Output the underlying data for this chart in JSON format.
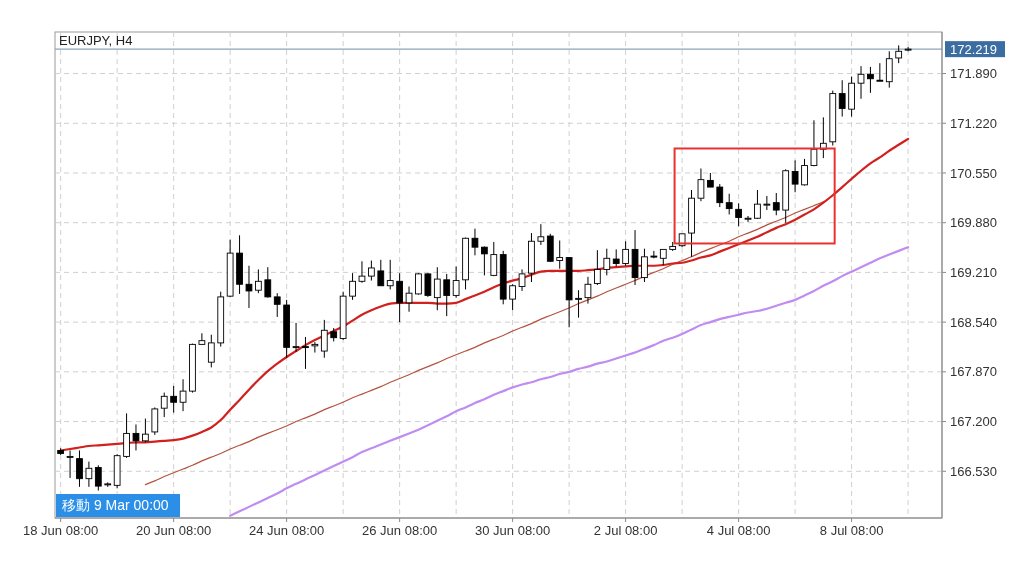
{
  "chart_data": {
    "type": "candlestick",
    "title": "EURJPY, H4",
    "categories": [
      "18 Jun 08:00",
      null,
      null,
      null,
      null,
      null,
      null,
      null,
      null,
      null,
      null,
      null,
      "20 Jun 08:00",
      null,
      null,
      null,
      null,
      null,
      null,
      null,
      null,
      null,
      null,
      null,
      "24 Jun 08:00",
      null,
      null,
      null,
      null,
      null,
      null,
      null,
      null,
      null,
      null,
      null,
      "26 Jun 08:00",
      null,
      null,
      null,
      null,
      null,
      null,
      null,
      null,
      null,
      null,
      null,
      "30 Jun 08:00",
      null,
      null,
      null,
      null,
      null,
      null,
      null,
      null,
      null,
      null,
      null,
      "2 Jul 08:00",
      null,
      null,
      null,
      null,
      null,
      null,
      null,
      null,
      null,
      null,
      null,
      "4 Jul 08:00",
      null,
      null,
      null,
      null,
      null,
      null,
      null,
      null,
      null,
      null,
      null,
      "8 Jul 08:00",
      null,
      null,
      null,
      null,
      null,
      null
    ],
    "ohlc": [
      [
        166.81,
        166.84,
        166.75,
        166.77
      ],
      [
        166.72,
        166.81,
        166.44,
        166.73
      ],
      [
        166.7,
        166.81,
        166.32,
        166.43
      ],
      [
        166.43,
        166.66,
        166.32,
        166.57
      ],
      [
        166.58,
        166.61,
        166.27,
        166.33
      ],
      [
        166.35,
        166.38,
        166.32,
        166.36
      ],
      [
        166.34,
        166.76,
        166.3,
        166.74
      ],
      [
        166.73,
        167.31,
        166.71,
        167.04
      ],
      [
        167.04,
        167.16,
        166.81,
        166.94
      ],
      [
        166.94,
        167.24,
        166.92,
        167.03
      ],
      [
        167.06,
        167.39,
        167.02,
        167.37
      ],
      [
        167.38,
        167.59,
        167.26,
        167.54
      ],
      [
        167.54,
        167.68,
        167.32,
        167.46
      ],
      [
        167.46,
        167.77,
        167.34,
        167.61
      ],
      [
        167.61,
        168.25,
        167.59,
        168.24
      ],
      [
        168.24,
        168.39,
        168.24,
        168.29
      ],
      [
        168.0,
        168.37,
        167.93,
        168.26
      ],
      [
        168.26,
        168.95,
        168.21,
        168.88
      ],
      [
        168.89,
        169.65,
        168.88,
        169.47
      ],
      [
        169.47,
        169.71,
        168.92,
        169.05
      ],
      [
        169.05,
        169.3,
        168.73,
        168.96
      ],
      [
        168.97,
        169.25,
        168.93,
        169.09
      ],
      [
        169.11,
        169.28,
        168.87,
        168.88
      ],
      [
        168.88,
        168.93,
        168.61,
        168.78
      ],
      [
        168.77,
        168.84,
        168.06,
        168.2
      ],
      [
        168.2,
        168.53,
        168.14,
        168.21
      ],
      [
        168.21,
        168.34,
        167.91,
        168.2
      ],
      [
        168.22,
        168.27,
        168.13,
        168.24
      ],
      [
        168.15,
        168.57,
        168.06,
        168.43
      ],
      [
        168.41,
        168.46,
        168.28,
        168.33
      ],
      [
        168.32,
        168.95,
        168.3,
        168.89
      ],
      [
        168.89,
        169.2,
        168.84,
        169.09
      ],
      [
        169.09,
        169.36,
        169.07,
        169.16
      ],
      [
        169.16,
        169.37,
        169.1,
        169.27
      ],
      [
        169.23,
        169.38,
        169.03,
        169.03
      ],
      [
        169.03,
        169.38,
        168.98,
        169.1
      ],
      [
        169.09,
        169.2,
        168.54,
        168.8
      ],
      [
        168.8,
        169.02,
        168.68,
        168.93
      ],
      [
        168.92,
        169.2,
        168.91,
        169.19
      ],
      [
        169.19,
        169.2,
        168.88,
        168.9
      ],
      [
        168.87,
        169.28,
        168.7,
        169.12
      ],
      [
        169.11,
        169.19,
        168.62,
        168.9
      ],
      [
        168.9,
        169.29,
        168.87,
        169.1
      ],
      [
        169.11,
        169.68,
        168.98,
        169.67
      ],
      [
        169.67,
        169.8,
        169.44,
        169.55
      ],
      [
        169.55,
        169.56,
        169.17,
        169.46
      ],
      [
        169.17,
        169.62,
        169.16,
        169.45
      ],
      [
        169.45,
        169.5,
        168.78,
        168.85
      ],
      [
        168.85,
        169.05,
        168.7,
        169.03
      ],
      [
        169.02,
        169.25,
        168.96,
        169.19
      ],
      [
        169.2,
        169.74,
        169.08,
        169.63
      ],
      [
        169.63,
        169.86,
        169.58,
        169.69
      ],
      [
        169.7,
        169.73,
        169.35,
        169.36
      ],
      [
        169.37,
        169.64,
        169.26,
        169.41
      ],
      [
        169.41,
        169.41,
        168.47,
        168.84
      ],
      [
        168.85,
        168.97,
        168.6,
        168.86
      ],
      [
        168.87,
        169.15,
        168.79,
        169.05
      ],
      [
        169.06,
        169.51,
        169.04,
        169.25
      ],
      [
        169.25,
        169.53,
        169.17,
        169.4
      ],
      [
        169.39,
        169.52,
        169.29,
        169.33
      ],
      [
        169.33,
        169.63,
        169.3,
        169.52
      ],
      [
        169.52,
        169.78,
        169.04,
        169.14
      ],
      [
        169.14,
        169.53,
        169.08,
        169.42
      ],
      [
        169.43,
        169.5,
        169.4,
        169.42
      ],
      [
        169.4,
        169.52,
        169.31,
        169.52
      ],
      [
        169.52,
        169.62,
        169.5,
        169.56
      ],
      [
        169.57,
        169.73,
        169.55,
        169.73
      ],
      [
        169.74,
        170.32,
        169.42,
        170.21
      ],
      [
        170.21,
        170.61,
        170.17,
        170.46
      ],
      [
        170.45,
        170.55,
        170.36,
        170.36
      ],
      [
        170.36,
        170.4,
        170.09,
        170.15
      ],
      [
        170.15,
        170.27,
        169.99,
        170.07
      ],
      [
        170.06,
        170.14,
        169.83,
        169.95
      ],
      [
        169.94,
        169.97,
        169.89,
        169.94
      ],
      [
        169.94,
        170.32,
        169.93,
        170.13
      ],
      [
        170.12,
        170.24,
        170.05,
        170.13
      ],
      [
        170.15,
        170.28,
        169.98,
        170.05
      ],
      [
        170.05,
        170.6,
        169.88,
        170.58
      ],
      [
        170.57,
        170.72,
        170.29,
        170.4
      ],
      [
        170.39,
        170.74,
        170.38,
        170.65
      ],
      [
        170.65,
        171.26,
        170.64,
        170.87
      ],
      [
        170.87,
        171.3,
        170.75,
        170.95
      ],
      [
        170.97,
        171.66,
        170.92,
        171.62
      ],
      [
        171.62,
        171.8,
        171.31,
        171.42
      ],
      [
        171.41,
        171.85,
        171.31,
        171.76
      ],
      [
        171.76,
        171.99,
        171.55,
        171.88
      ],
      [
        171.88,
        171.98,
        171.63,
        171.82
      ],
      [
        171.8,
        172.03,
        171.79,
        171.79
      ],
      [
        171.78,
        172.19,
        171.7,
        172.09
      ],
      [
        172.1,
        172.27,
        172.03,
        172.19
      ],
      [
        172.21,
        172.25,
        172.19,
        172.219
      ]
    ],
    "series": [
      {
        "type": "line",
        "color": "#b4533f",
        "values": [
          null,
          null,
          null,
          null,
          null,
          null,
          null,
          null,
          null,
          166.35,
          166.4,
          166.46,
          166.51,
          166.56,
          166.61,
          166.67,
          166.72,
          166.77,
          166.83,
          166.88,
          166.93,
          166.99,
          167.04,
          167.09,
          167.14,
          167.2,
          167.25,
          167.3,
          167.36,
          167.41,
          167.46,
          167.52,
          167.57,
          167.62,
          167.67,
          167.73,
          167.78,
          167.83,
          167.89,
          167.94,
          167.99,
          168.05,
          168.1,
          168.15,
          168.2,
          168.26,
          168.31,
          168.36,
          168.42,
          168.47,
          168.52,
          168.58,
          168.63,
          168.68,
          168.73,
          168.79,
          168.84,
          168.89,
          168.95,
          169.0,
          169.05,
          169.1,
          169.16,
          169.21,
          169.26,
          169.32,
          169.37,
          169.42,
          169.48,
          169.53,
          169.58,
          169.63,
          169.69,
          169.74,
          169.79,
          169.85,
          169.9,
          169.95,
          170.01,
          170.06,
          170.11,
          170.16,
          null,
          null,
          null,
          null,
          null,
          null,
          null,
          null,
          null
        ]
      },
      {
        "type": "line",
        "color": "#d0211f",
        "values": [
          166.81,
          166.83,
          166.85,
          166.87,
          166.88,
          166.89,
          166.9,
          166.91,
          166.92,
          166.92,
          166.93,
          166.94,
          166.95,
          166.97,
          167.01,
          167.06,
          167.12,
          167.22,
          167.36,
          167.49,
          167.63,
          167.76,
          167.88,
          167.98,
          168.07,
          168.15,
          168.23,
          168.3,
          168.36,
          168.42,
          168.48,
          168.56,
          168.64,
          168.7,
          168.75,
          168.79,
          168.8,
          168.8,
          168.8,
          168.8,
          168.79,
          168.79,
          168.8,
          168.85,
          168.9,
          168.95,
          169.01,
          169.06,
          169.1,
          169.13,
          169.18,
          169.22,
          169.23,
          169.23,
          169.23,
          169.23,
          169.24,
          169.25,
          169.27,
          169.28,
          169.29,
          169.3,
          169.3,
          169.3,
          169.31,
          169.33,
          169.34,
          169.37,
          169.41,
          169.44,
          169.49,
          169.54,
          169.59,
          169.64,
          169.69,
          169.75,
          169.81,
          169.86,
          169.92,
          169.99,
          170.06,
          170.15,
          170.25,
          170.36,
          170.47,
          170.58,
          170.68,
          170.76,
          170.85,
          170.93,
          171.01
        ]
      },
      {
        "type": "line",
        "color": "#c08cf0",
        "values": [
          null,
          null,
          null,
          null,
          null,
          null,
          null,
          null,
          null,
          null,
          null,
          null,
          null,
          null,
          null,
          null,
          null,
          null,
          165.93,
          165.99,
          166.05,
          166.11,
          166.17,
          166.23,
          166.3,
          166.36,
          166.42,
          166.48,
          166.54,
          166.6,
          166.66,
          166.72,
          166.79,
          166.84,
          166.89,
          166.94,
          166.99,
          167.04,
          167.09,
          167.15,
          167.21,
          167.27,
          167.34,
          167.39,
          167.45,
          167.5,
          167.56,
          167.61,
          167.66,
          167.7,
          167.73,
          167.77,
          167.8,
          167.84,
          167.87,
          167.91,
          167.94,
          167.98,
          168.01,
          168.05,
          168.09,
          168.13,
          168.18,
          168.23,
          168.29,
          168.33,
          168.38,
          168.44,
          168.5,
          168.54,
          168.58,
          168.61,
          168.64,
          168.67,
          168.69,
          168.72,
          168.76,
          168.8,
          168.84,
          168.9,
          168.96,
          169.03,
          169.09,
          169.16,
          169.22,
          169.28,
          169.34,
          169.4,
          169.45,
          169.5,
          169.55
        ]
      }
    ],
    "ylim": [
      165.9,
      172.45
    ],
    "yticks": [
      {
        "value": 166.53,
        "label": "166.530"
      },
      {
        "value": 167.2,
        "label": "167.200"
      },
      {
        "value": 167.87,
        "label": "167.870"
      },
      {
        "value": 168.54,
        "label": "168.540"
      },
      {
        "value": 169.21,
        "label": "169.210"
      },
      {
        "value": 169.88,
        "label": "169.880"
      },
      {
        "value": 170.55,
        "label": "170.550"
      },
      {
        "value": 171.22,
        "label": "171.220"
      },
      {
        "value": 171.89,
        "label": "171.890"
      }
    ],
    "ref_lines": [
      {
        "axis": "y",
        "value": 172.219,
        "label": "172.219",
        "color": "#8fa3ba"
      }
    ],
    "annotations": [
      "移動 9 Mar 00:00"
    ],
    "grid": true
  }
}
